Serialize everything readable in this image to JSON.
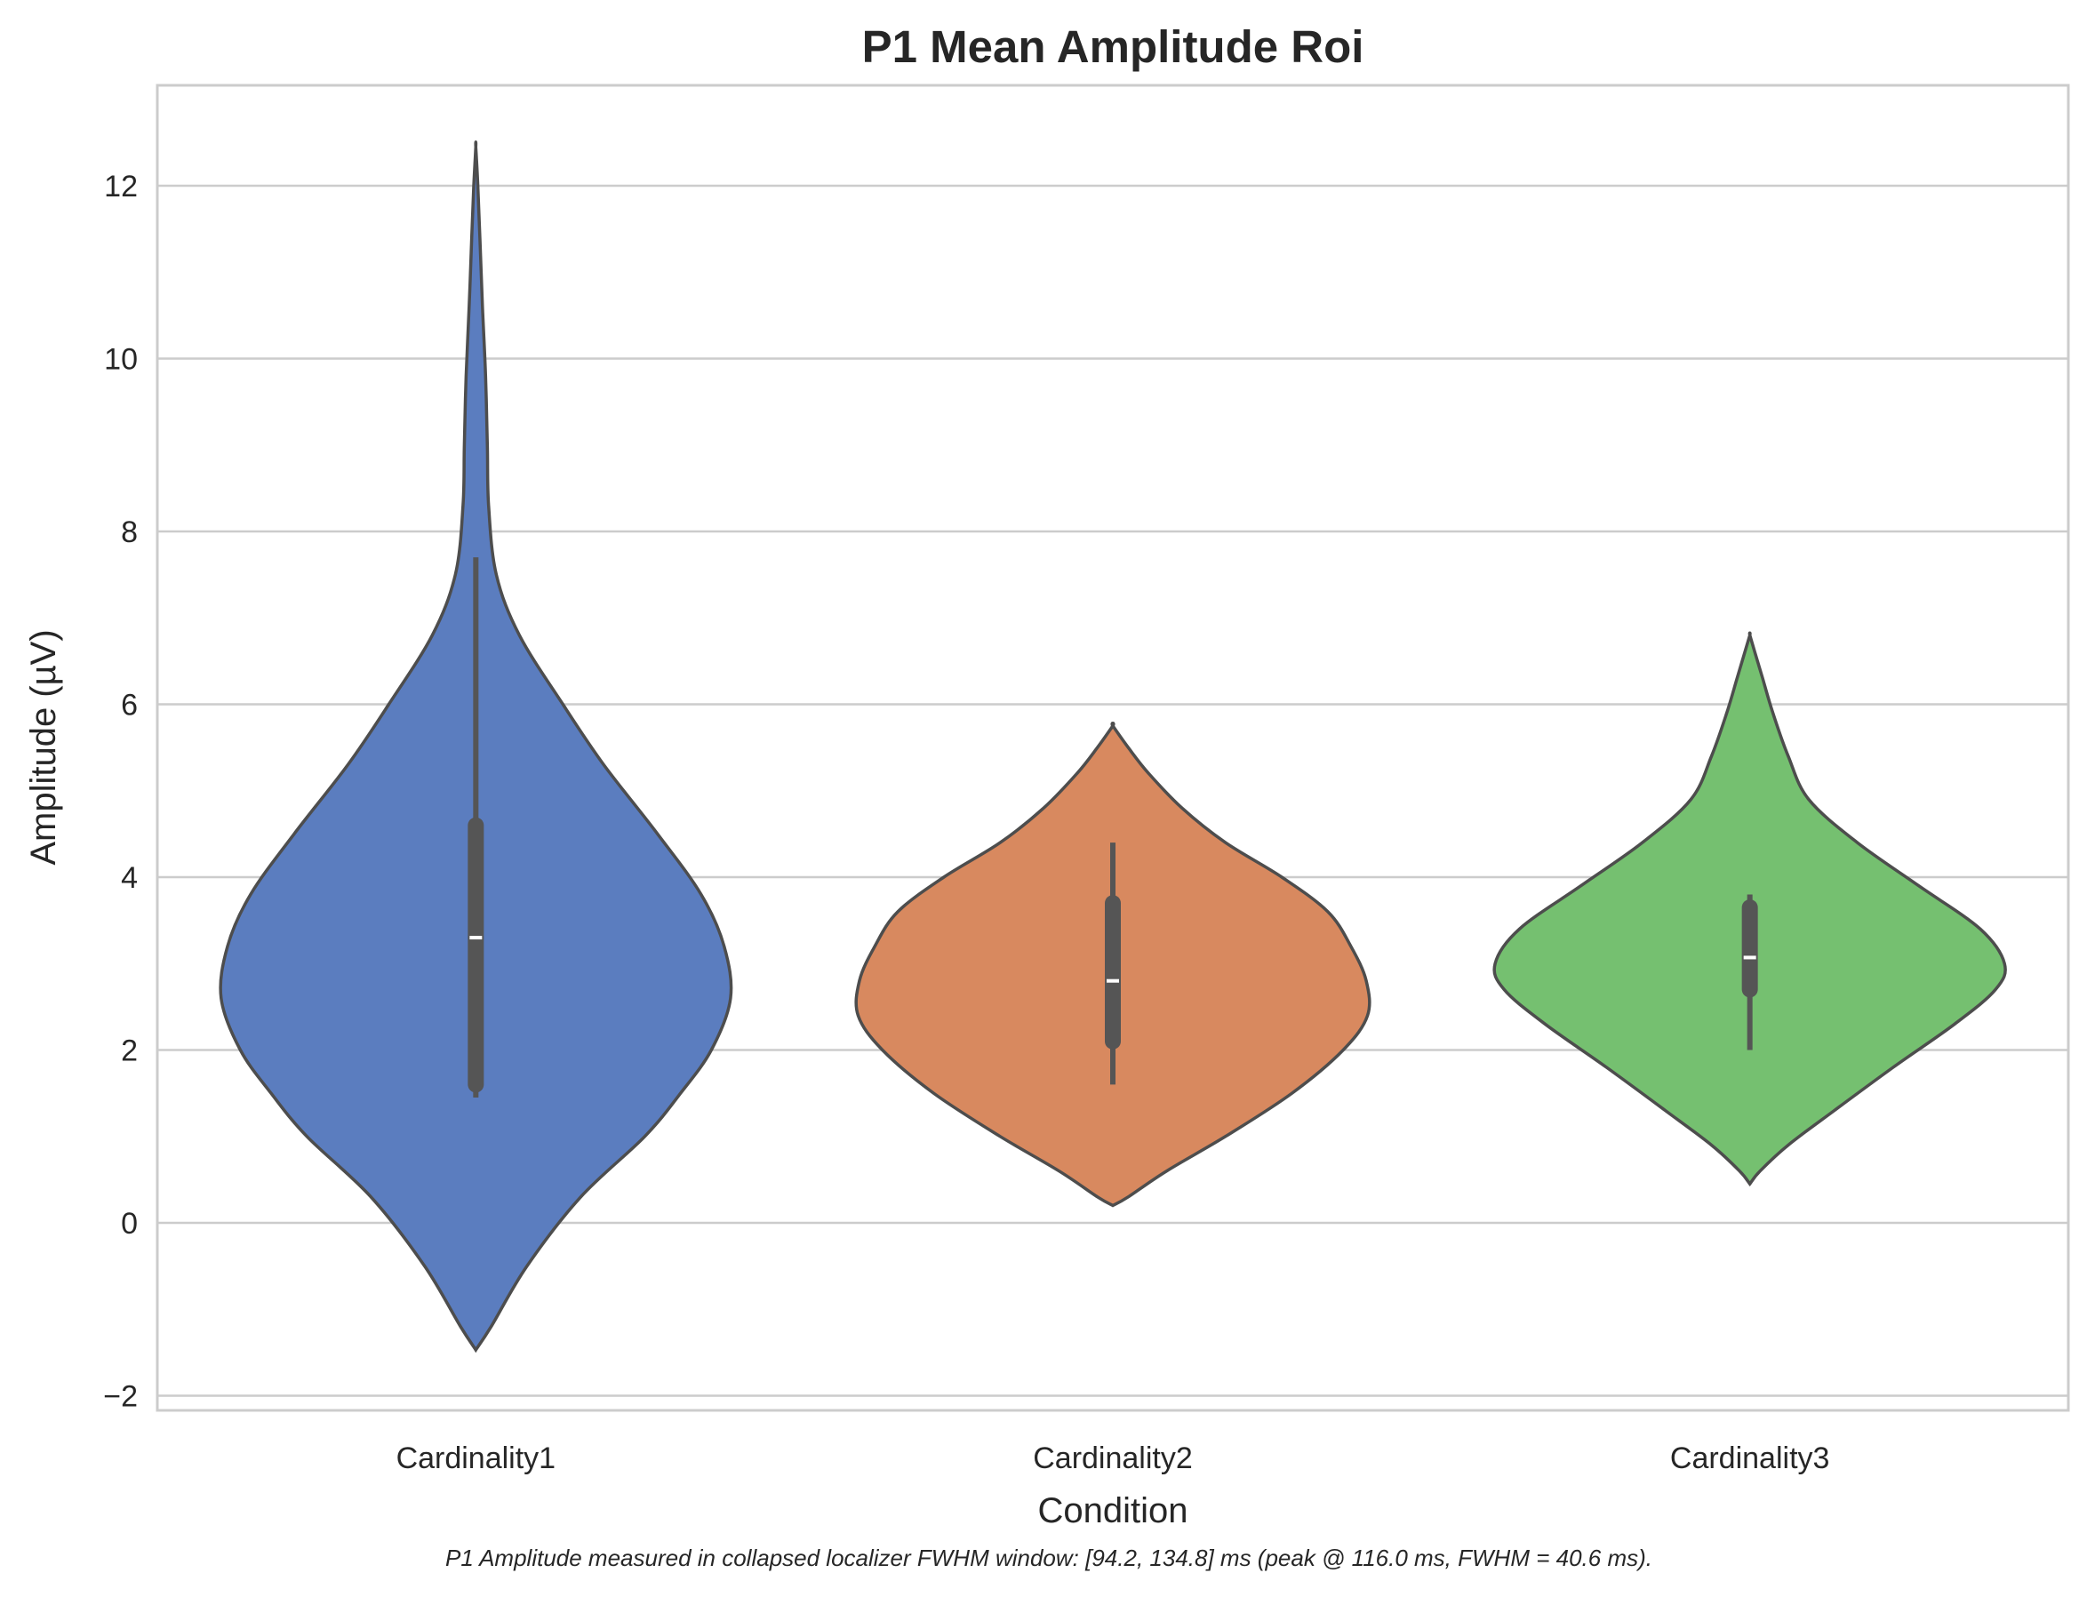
{
  "chart_data": {
    "type": "violin",
    "title": "P1 Mean Amplitude Roi",
    "xlabel": "Condition",
    "ylabel": "Amplitude (µV)",
    "ylim": [
      -2.15,
      13.2
    ],
    "yticks": [
      -2,
      0,
      2,
      4,
      6,
      8,
      10,
      12
    ],
    "ytick_labels": [
      "−2",
      "0",
      "2",
      "4",
      "6",
      "8",
      "10",
      "12"
    ],
    "grid": "horizontal",
    "categories": [
      "Cardinality1",
      "Cardinality2",
      "Cardinality3"
    ],
    "series": [
      {
        "category": "Cardinality1",
        "color": "#5b7dbf",
        "density_min": -1.47,
        "density_max": 12.45,
        "whisker_low": 1.45,
        "whisker_high": 7.7,
        "q1": 1.6,
        "q3": 4.6,
        "median": 3.3,
        "profile": [
          [
            -1.47,
            0.0
          ],
          [
            -1.2,
            0.06
          ],
          [
            -0.5,
            0.2
          ],
          [
            0.3,
            0.41
          ],
          [
            1.0,
            0.66
          ],
          [
            1.5,
            0.8
          ],
          [
            2.0,
            0.92
          ],
          [
            2.6,
            0.995
          ],
          [
            3.2,
            0.97
          ],
          [
            3.8,
            0.88
          ],
          [
            4.5,
            0.71
          ],
          [
            5.3,
            0.5
          ],
          [
            6.0,
            0.34
          ],
          [
            6.8,
            0.17
          ],
          [
            7.5,
            0.08
          ],
          [
            8.3,
            0.05
          ],
          [
            9.0,
            0.045
          ],
          [
            9.8,
            0.038
          ],
          [
            10.6,
            0.026
          ],
          [
            11.4,
            0.016
          ],
          [
            12.0,
            0.008
          ],
          [
            12.45,
            0.0
          ]
        ]
      },
      {
        "category": "Cardinality2",
        "color": "#d8895f",
        "density_min": 0.2,
        "density_max": 5.75,
        "whisker_low": 1.6,
        "whisker_high": 4.4,
        "q1": 2.1,
        "q3": 3.7,
        "median": 2.8,
        "profile": [
          [
            0.2,
            0.0
          ],
          [
            0.3,
            0.06
          ],
          [
            0.6,
            0.21
          ],
          [
            1.0,
            0.44
          ],
          [
            1.5,
            0.7
          ],
          [
            2.0,
            0.9
          ],
          [
            2.4,
            0.995
          ],
          [
            2.8,
            0.99
          ],
          [
            3.2,
            0.93
          ],
          [
            3.6,
            0.84
          ],
          [
            4.0,
            0.66
          ],
          [
            4.4,
            0.44
          ],
          [
            4.8,
            0.27
          ],
          [
            5.2,
            0.14
          ],
          [
            5.5,
            0.06
          ],
          [
            5.75,
            0.0
          ]
        ]
      },
      {
        "category": "Cardinality3",
        "color": "#75c070",
        "density_min": 0.45,
        "density_max": 6.8,
        "whisker_low": 2.0,
        "whisker_high": 3.8,
        "q1": 2.7,
        "q3": 3.65,
        "median": 3.07,
        "profile": [
          [
            0.45,
            0.0
          ],
          [
            0.6,
            0.04
          ],
          [
            0.9,
            0.15
          ],
          [
            1.3,
            0.33
          ],
          [
            1.8,
            0.56
          ],
          [
            2.3,
            0.8
          ],
          [
            2.7,
            0.96
          ],
          [
            3.0,
            0.995
          ],
          [
            3.4,
            0.9
          ],
          [
            3.9,
            0.66
          ],
          [
            4.4,
            0.42
          ],
          [
            4.9,
            0.23
          ],
          [
            5.4,
            0.15
          ],
          [
            5.9,
            0.09
          ],
          [
            6.3,
            0.05
          ],
          [
            6.6,
            0.02
          ],
          [
            6.8,
            0.0
          ]
        ]
      }
    ]
  },
  "caption": "P1 Amplitude measured in collapsed localizer FWHM window: [94.2, 134.8] ms (peak @ 116.0 ms, FWHM = 40.6 ms)."
}
